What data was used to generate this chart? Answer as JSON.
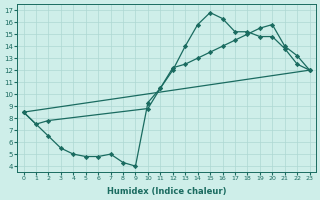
{
  "bg_color": "#ceeee9",
  "grid_color": "#aed8d3",
  "line_color": "#1a6b60",
  "marker": "D",
  "markersize": 2.2,
  "linewidth": 0.9,
  "xlabel": "Humidex (Indice chaleur)",
  "ylim": [
    3.5,
    17.5
  ],
  "xlim": [
    -0.5,
    23.5
  ],
  "yticks": [
    4,
    5,
    6,
    7,
    8,
    9,
    10,
    11,
    12,
    13,
    14,
    15,
    16,
    17
  ],
  "xticks": [
    0,
    1,
    2,
    3,
    4,
    5,
    6,
    7,
    8,
    9,
    10,
    11,
    12,
    13,
    14,
    15,
    16,
    17,
    18,
    19,
    20,
    21,
    22,
    23
  ],
  "curve1_x": [
    0,
    1,
    2,
    10,
    11,
    12,
    13,
    14,
    15,
    16,
    17,
    18,
    19,
    20,
    21,
    22,
    23
  ],
  "curve1_y": [
    8.5,
    7.5,
    7.8,
    8.8,
    10.5,
    12.0,
    14.0,
    15.8,
    16.8,
    16.3,
    15.2,
    15.2,
    14.8,
    14.8,
    13.8,
    12.5,
    12.0
  ],
  "curve2_x": [
    0,
    2,
    3,
    4,
    5,
    6,
    7,
    8,
    9,
    10,
    11,
    12,
    13,
    14,
    15,
    16,
    17,
    18,
    19,
    20,
    21,
    22,
    23
  ],
  "curve2_y": [
    8.5,
    6.5,
    5.5,
    5.0,
    4.8,
    4.8,
    5.0,
    4.3,
    4.0,
    9.3,
    10.5,
    12.2,
    12.5,
    13.0,
    13.5,
    14.0,
    14.5,
    15.0,
    15.5,
    15.8,
    14.0,
    13.2,
    12.0
  ],
  "curve3_x": [
    0,
    23
  ],
  "curve3_y": [
    8.5,
    12.0
  ]
}
